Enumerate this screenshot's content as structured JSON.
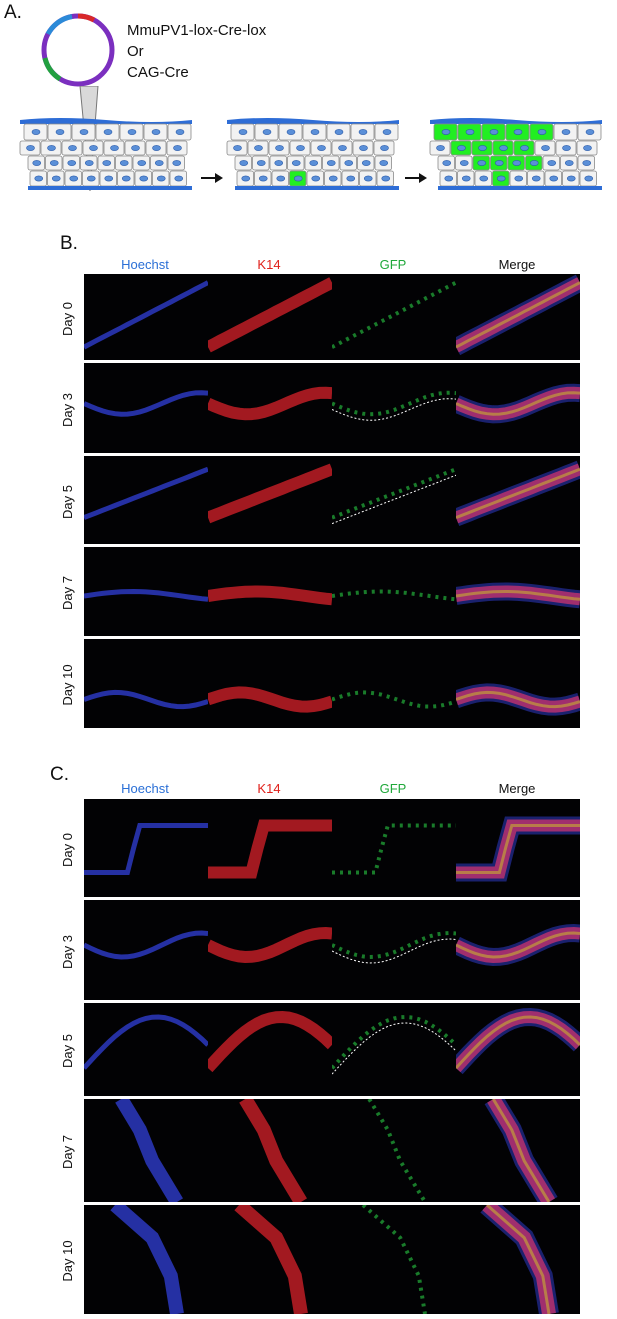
{
  "panel_a": {
    "label": "A.",
    "plasmid_lines": [
      "MmuPV1-lox-Cre-lox",
      "Or",
      "CAG-Cre"
    ]
  },
  "panel_b": {
    "label": "B.",
    "columns": [
      {
        "label": "Hoechst",
        "color": "#2a6fd6"
      },
      {
        "label": "K14",
        "color": "#e0201a"
      },
      {
        "label": "GFP",
        "color": "#1fa83a"
      },
      {
        "label": "Merge",
        "color": "#111111"
      }
    ],
    "rows": [
      "Day 0",
      "Day 3",
      "Day 5",
      "Day 7",
      "Day 10"
    ]
  },
  "panel_c": {
    "label": "C.",
    "columns": [
      {
        "label": "Hoechst",
        "color": "#2a6fd6"
      },
      {
        "label": "K14",
        "color": "#e0201a"
      },
      {
        "label": "GFP",
        "color": "#1fa83a"
      },
      {
        "label": "Merge",
        "color": "#111111"
      }
    ],
    "rows": [
      "Day 0",
      "Day 3",
      "Day 5",
      "Day 7",
      "Day 10"
    ]
  },
  "channel_colors": {
    "hoechst": "#3140d8",
    "k14": "#d8222a",
    "gfp": "#2ee04a",
    "merge": "#b8306e"
  }
}
